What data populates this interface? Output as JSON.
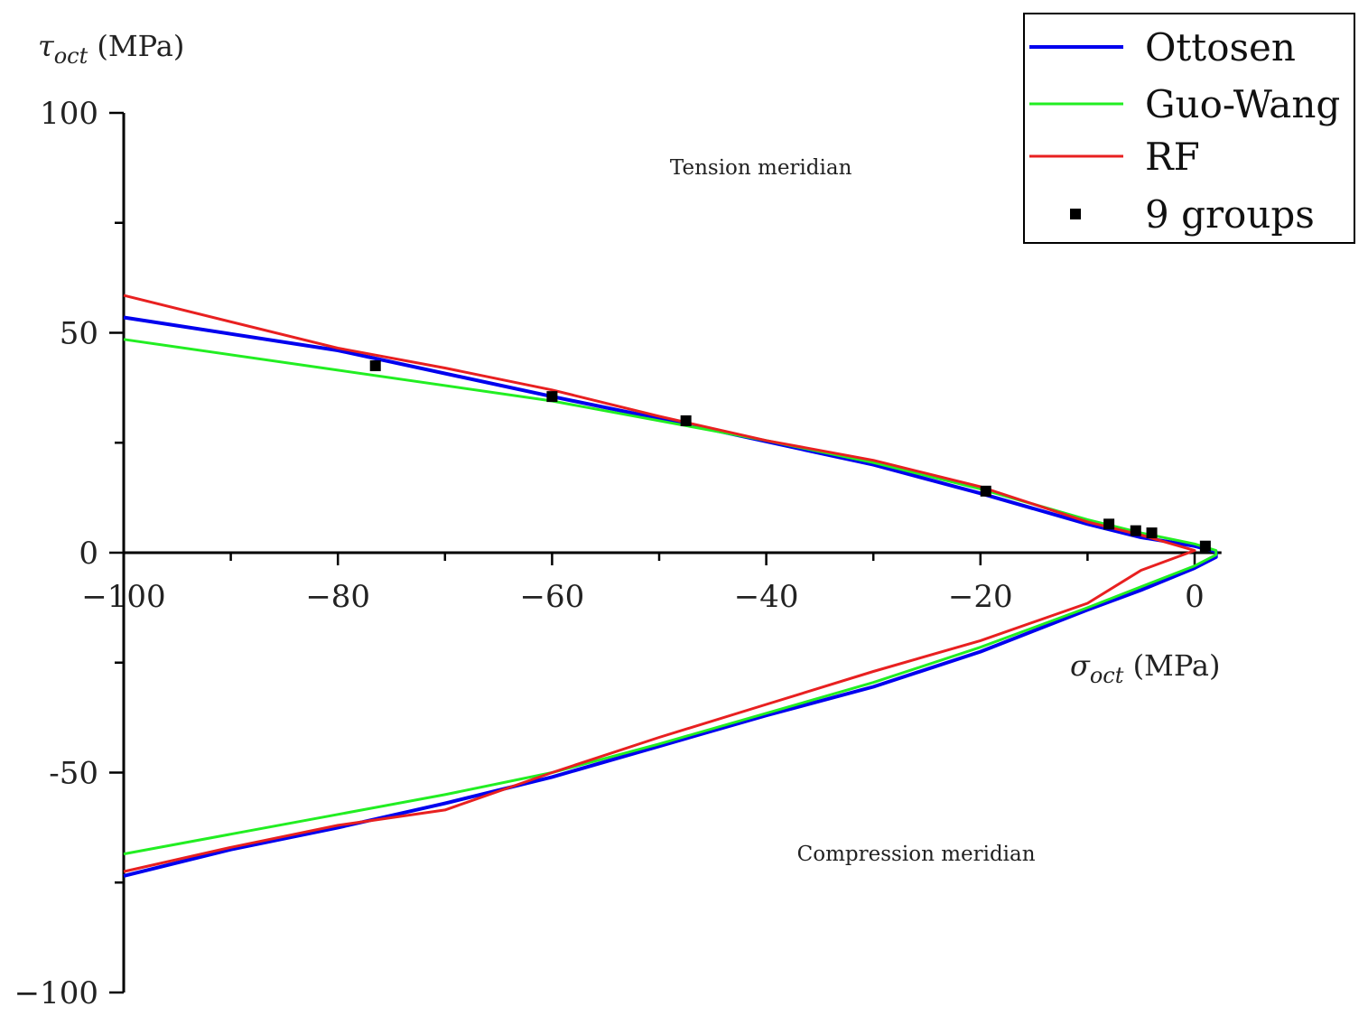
{
  "chart_data": {
    "type": "line",
    "xlabel": {
      "symbol": "σ",
      "subscript": "oct",
      "unit": " (MPa)"
    },
    "ylabel": {
      "symbol": "τ",
      "subscript": "oct",
      "unit": " (MPa)"
    },
    "xlim": [
      -100,
      2
    ],
    "ylim": [
      -100,
      100
    ],
    "x_ticks": [
      -100,
      -80,
      -60,
      -40,
      -20,
      0
    ],
    "x_tick_labels": [
      "−100",
      "−80",
      "−60",
      "−40",
      "−20",
      "0"
    ],
    "y_ticks": [
      100,
      50,
      0,
      -50,
      -100
    ],
    "y_tick_labels": [
      "100",
      "50",
      "0",
      "-50",
      "−100"
    ],
    "grid": false,
    "legend_position": "top-right",
    "annotations": [
      {
        "text": "Tension meridian",
        "x": -40.5,
        "y": 86
      },
      {
        "text": "Compression meridian",
        "x": -26,
        "y": -70
      }
    ],
    "series": [
      {
        "name": "Ottosen",
        "color": "#0000ee",
        "width": 4,
        "kind": "line",
        "points": [
          [
            -100,
            53.5
          ],
          [
            -80,
            46
          ],
          [
            -60,
            35.5
          ],
          [
            -48,
            29.5
          ],
          [
            -30,
            20
          ],
          [
            -20,
            13.5
          ],
          [
            -10,
            6.5
          ],
          [
            -5,
            3.5
          ],
          [
            0,
            1.5
          ],
          [
            2,
            0.2
          ],
          [
            2,
            -1
          ],
          [
            0,
            -3.5
          ],
          [
            -5,
            -8.5
          ],
          [
            -10,
            -13
          ],
          [
            -20,
            -22.5
          ],
          [
            -30,
            -30.5
          ],
          [
            -40,
            -37
          ],
          [
            -50,
            -44
          ],
          [
            -60,
            -51
          ],
          [
            -70,
            -57
          ],
          [
            -80,
            -62.5
          ],
          [
            -90,
            -67.5
          ],
          [
            -100,
            -73.5
          ]
        ]
      },
      {
        "name": "Guo-Wang",
        "color": "#22ee22",
        "width": 3,
        "kind": "line",
        "points": [
          [
            -100,
            48.5
          ],
          [
            -80,
            41.5
          ],
          [
            -60,
            34.5
          ],
          [
            -40,
            25.5
          ],
          [
            -30,
            20.5
          ],
          [
            -20,
            14.5
          ],
          [
            -10,
            7.5
          ],
          [
            -5,
            4.5
          ],
          [
            0,
            2
          ],
          [
            2,
            0.5
          ],
          [
            2,
            -0.5
          ],
          [
            0,
            -3
          ],
          [
            -10,
            -12.5
          ],
          [
            -20,
            -21.5
          ],
          [
            -30,
            -29.5
          ],
          [
            -40,
            -36.5
          ],
          [
            -50,
            -43.5
          ],
          [
            -60,
            -50
          ],
          [
            -70,
            -55
          ],
          [
            -80,
            -59.5
          ],
          [
            -90,
            -64
          ],
          [
            -100,
            -68.5
          ]
        ]
      },
      {
        "name": "RF",
        "color": "#e82020",
        "width": 3,
        "kind": "line",
        "points": [
          [
            -100,
            58.5
          ],
          [
            -80,
            46.5
          ],
          [
            -70,
            42
          ],
          [
            -60,
            37
          ],
          [
            -50,
            31
          ],
          [
            -40,
            25.5
          ],
          [
            -30,
            21
          ],
          [
            -20,
            15
          ],
          [
            -10,
            7
          ],
          [
            -5,
            4
          ],
          [
            0,
            0.5
          ],
          [
            -5,
            -4
          ],
          [
            -10,
            -11.5
          ],
          [
            -20,
            -20
          ],
          [
            -30,
            -27
          ],
          [
            -40,
            -34.5
          ],
          [
            -50,
            -42
          ],
          [
            -60,
            -50
          ],
          [
            -70,
            -58.5
          ],
          [
            -80,
            -62
          ],
          [
            -90,
            -67
          ],
          [
            -100,
            -72.5
          ]
        ]
      },
      {
        "name": "9 groups",
        "color": "#000000",
        "kind": "markers",
        "points": [
          [
            -76.5,
            42.5
          ],
          [
            -60,
            35.5
          ],
          [
            -47.5,
            30
          ],
          [
            -19.5,
            14
          ],
          [
            -8,
            6.5
          ],
          [
            -5.5,
            5
          ],
          [
            -4,
            4.5
          ],
          [
            1,
            1.5
          ]
        ]
      }
    ]
  }
}
